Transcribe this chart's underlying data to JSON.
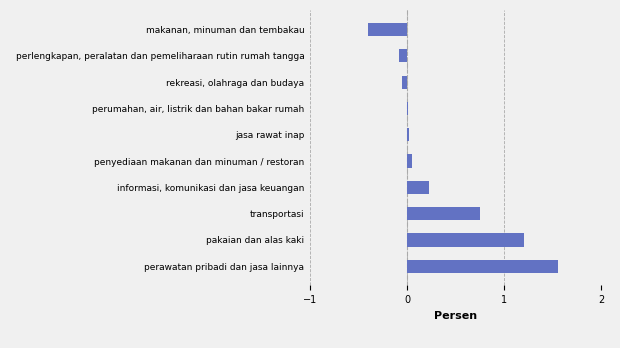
{
  "categories": [
    "makanan, minuman dan tembakau",
    "perlengkapan, peralatan dan pemeliharaan rutin rumah tangga",
    "rekreasi, olahraga dan budaya",
    "perumahan, air, listrik dan bahan bakar rumah",
    "jasa rawat inap",
    "penyediaan makanan dan minuman / restoran",
    "informasi, komunikasi dan jasa keuangan",
    "transportasi",
    "pakaian dan alas kaki",
    "perawatan pribadi dan jasa lainnya"
  ],
  "values": [
    -0.4,
    -0.08,
    -0.05,
    0.01,
    0.02,
    0.05,
    0.22,
    0.75,
    1.2,
    1.55
  ],
  "bar_color": "#6272c3",
  "xlabel": "Persen",
  "xlim": [
    -1,
    2
  ],
  "xticks": [
    -1,
    0,
    1,
    2
  ],
  "background_color": "#f0f0f0",
  "plot_background_color": "#f0f0f0",
  "label_fontsize": 6.5,
  "xlabel_fontsize": 8,
  "tick_fontsize": 7,
  "bar_height": 0.5
}
